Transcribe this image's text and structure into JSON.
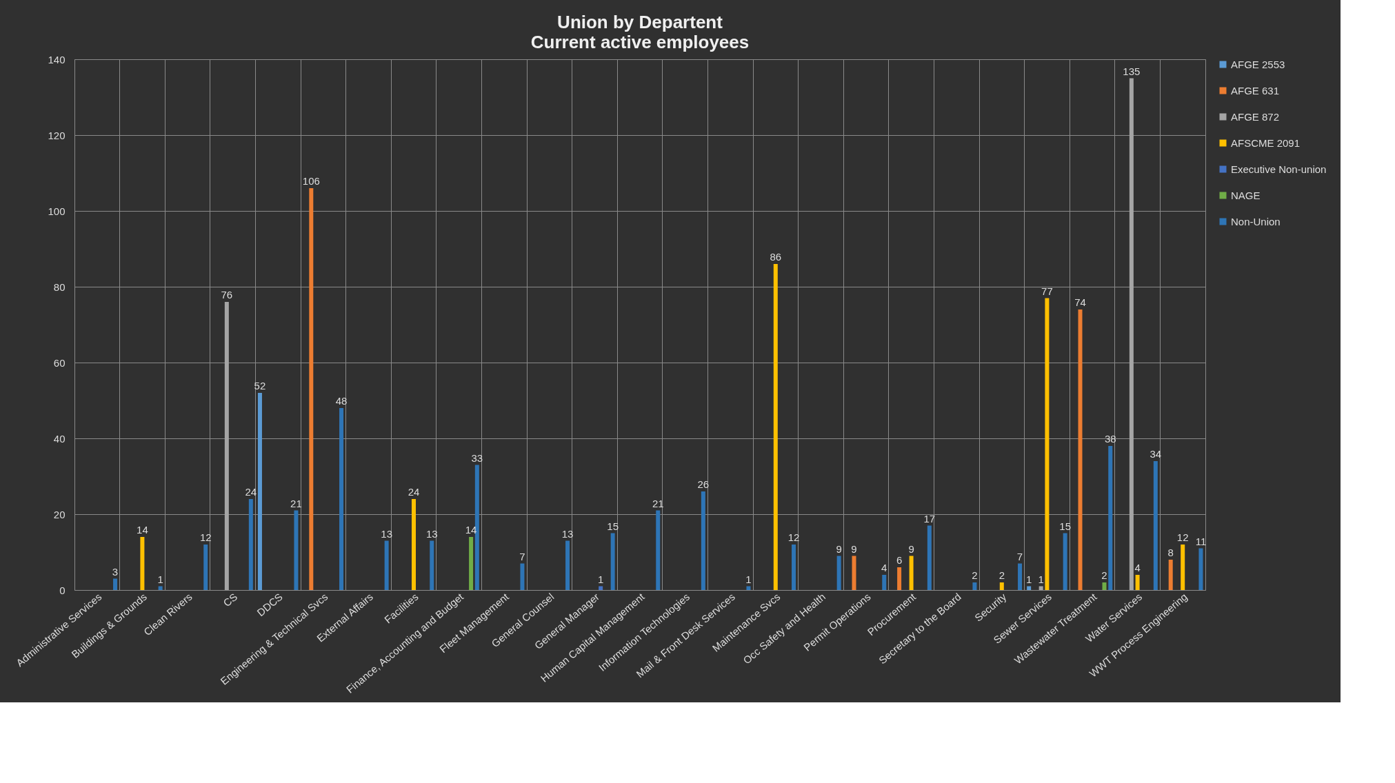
{
  "chart_data": {
    "type": "bar",
    "title": "Union by Departent",
    "subtitle": "Current active employees",
    "categories": [
      "Administrative Services",
      "Buildings & Grounds",
      "Clean Rivers",
      "CS",
      "DDCS",
      "Engineering & Technical Svcs",
      "External Affairs",
      "Facilities",
      "Finance, Accounting and Budget",
      "Fleet Management",
      "General Counsel",
      "General Manager",
      "Human Capital Management",
      "Information Technologies",
      "Mail & Front Desk Services",
      "Maintenance Svcs",
      "Occ Safety and Health",
      "Permit Operations",
      "Procurement",
      "Secretary to the Board",
      "Security",
      "Sewer Services",
      "Wastewater Treatment",
      "Water Services",
      "WWT Process Engineering"
    ],
    "series": [
      {
        "name": "AFGE 2553",
        "color": "#5b9bd5",
        "values": [
          null,
          null,
          null,
          null,
          52,
          null,
          null,
          null,
          null,
          null,
          null,
          null,
          null,
          null,
          null,
          null,
          null,
          null,
          null,
          null,
          null,
          1,
          null,
          null,
          null
        ]
      },
      {
        "name": "AFGE 631",
        "color": "#ed7d31",
        "values": [
          null,
          null,
          null,
          null,
          null,
          106,
          null,
          null,
          null,
          null,
          null,
          null,
          null,
          null,
          null,
          null,
          null,
          9,
          6,
          null,
          null,
          null,
          74,
          null,
          8
        ]
      },
      {
        "name": "AFGE 872",
        "color": "#a5a5a5",
        "values": [
          null,
          null,
          null,
          76,
          null,
          null,
          null,
          null,
          null,
          null,
          null,
          null,
          null,
          null,
          null,
          null,
          null,
          null,
          null,
          null,
          null,
          1,
          null,
          135,
          null
        ]
      },
      {
        "name": "AFSCME 2091",
        "color": "#ffc000",
        "values": [
          null,
          14,
          null,
          null,
          null,
          null,
          null,
          24,
          null,
          null,
          null,
          null,
          null,
          null,
          null,
          86,
          null,
          null,
          9,
          null,
          2,
          77,
          null,
          4,
          12
        ]
      },
      {
        "name": "Executive Non-union",
        "color": "#4472c4",
        "values": [
          null,
          null,
          null,
          null,
          null,
          null,
          null,
          null,
          null,
          null,
          null,
          1,
          null,
          null,
          null,
          null,
          null,
          null,
          null,
          null,
          null,
          null,
          null,
          null,
          null
        ]
      },
      {
        "name": "NAGE",
        "color": "#70ad47",
        "values": [
          null,
          null,
          null,
          null,
          null,
          null,
          null,
          null,
          14,
          null,
          null,
          null,
          null,
          null,
          null,
          null,
          null,
          null,
          null,
          null,
          null,
          null,
          2,
          null,
          null
        ]
      },
      {
        "name": "Non-Union",
        "color": "#2e75b6",
        "values": [
          3,
          1,
          12,
          24,
          21,
          48,
          13,
          13,
          33,
          7,
          13,
          15,
          21,
          26,
          1,
          12,
          9,
          4,
          17,
          2,
          7,
          15,
          38,
          34,
          11
        ]
      }
    ],
    "ylim": [
      0,
      140
    ],
    "yticks": [
      0,
      20,
      40,
      60,
      80,
      100,
      120,
      140
    ],
    "grid": true,
    "legend": "top right",
    "data_labels": true
  }
}
